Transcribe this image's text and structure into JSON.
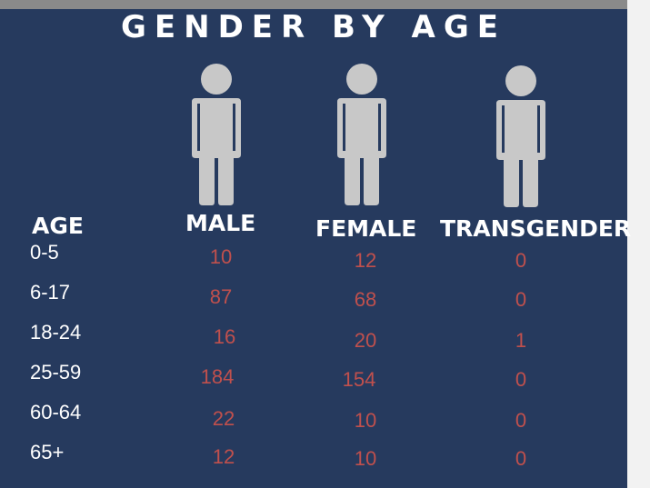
{
  "title": "GENDER BY AGE",
  "colors": {
    "background": "#263a5e",
    "text": "#ffffff",
    "value": "#c0504d",
    "figure": "#c8c8c8"
  },
  "icons": [
    "person-icon-male",
    "person-icon-female",
    "person-icon-transgender"
  ],
  "chart_data": {
    "type": "table",
    "title": "GENDER BY AGE",
    "row_header": "AGE",
    "categories": [
      "0-5",
      "6-17",
      "18-24",
      "25-59",
      "60-64",
      "65+"
    ],
    "series": [
      {
        "name": "MALE",
        "values": [
          10,
          87,
          16,
          184,
          22,
          12
        ]
      },
      {
        "name": "FEMALE",
        "values": [
          12,
          68,
          20,
          154,
          10,
          10
        ]
      },
      {
        "name": "TRANSGENDER",
        "values": [
          0,
          0,
          1,
          0,
          0,
          0
        ]
      }
    ]
  }
}
